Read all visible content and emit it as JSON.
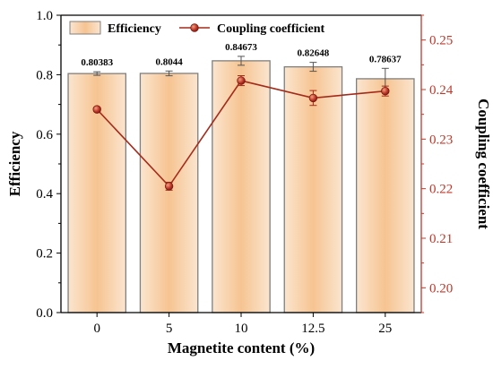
{
  "chart_data": {
    "type": "bar",
    "xlabel": "Magnetite content (%)",
    "ylabel": "Efficiency",
    "y2label": "Coupling coefficient",
    "categories": [
      "0",
      "5",
      "10",
      "12.5",
      "25"
    ],
    "ylim": [
      0.0,
      1.0
    ],
    "y2lim": [
      0.195,
      0.255
    ],
    "y_ticks": [
      "0.0",
      "0.2",
      "0.4",
      "0.6",
      "0.8",
      "1.0"
    ],
    "y2_ticks": [
      "0.20",
      "0.21",
      "0.22",
      "0.23",
      "0.24",
      "0.25"
    ],
    "series": [
      {
        "name": "Efficiency",
        "kind": "bar",
        "axis": "left",
        "values": [
          0.80383,
          0.8044,
          0.84673,
          0.82648,
          0.78637
        ],
        "errors": [
          0.006,
          0.008,
          0.015,
          0.015,
          0.035
        ],
        "data_labels": [
          "0.80383",
          "0.8044",
          "0.84673",
          "0.82648",
          "0.78637"
        ]
      },
      {
        "name": "Coupling coefficient",
        "kind": "line",
        "axis": "right",
        "values": [
          0.236,
          0.2205,
          0.2418,
          0.2383,
          0.2397
        ],
        "errors": [
          0.0004,
          0.0008,
          0.001,
          0.0015,
          0.001
        ]
      }
    ],
    "legend": {
      "position": "top-left"
    },
    "colors": {
      "bar_edge": "#7f7f7f",
      "bar_fill_edge": "#fbe5cf",
      "bar_fill_center": "#f6c491",
      "line": "#a52a1a",
      "marker": "#c0392b",
      "right_axis": "#c0392b",
      "axis": "#000000"
    }
  }
}
